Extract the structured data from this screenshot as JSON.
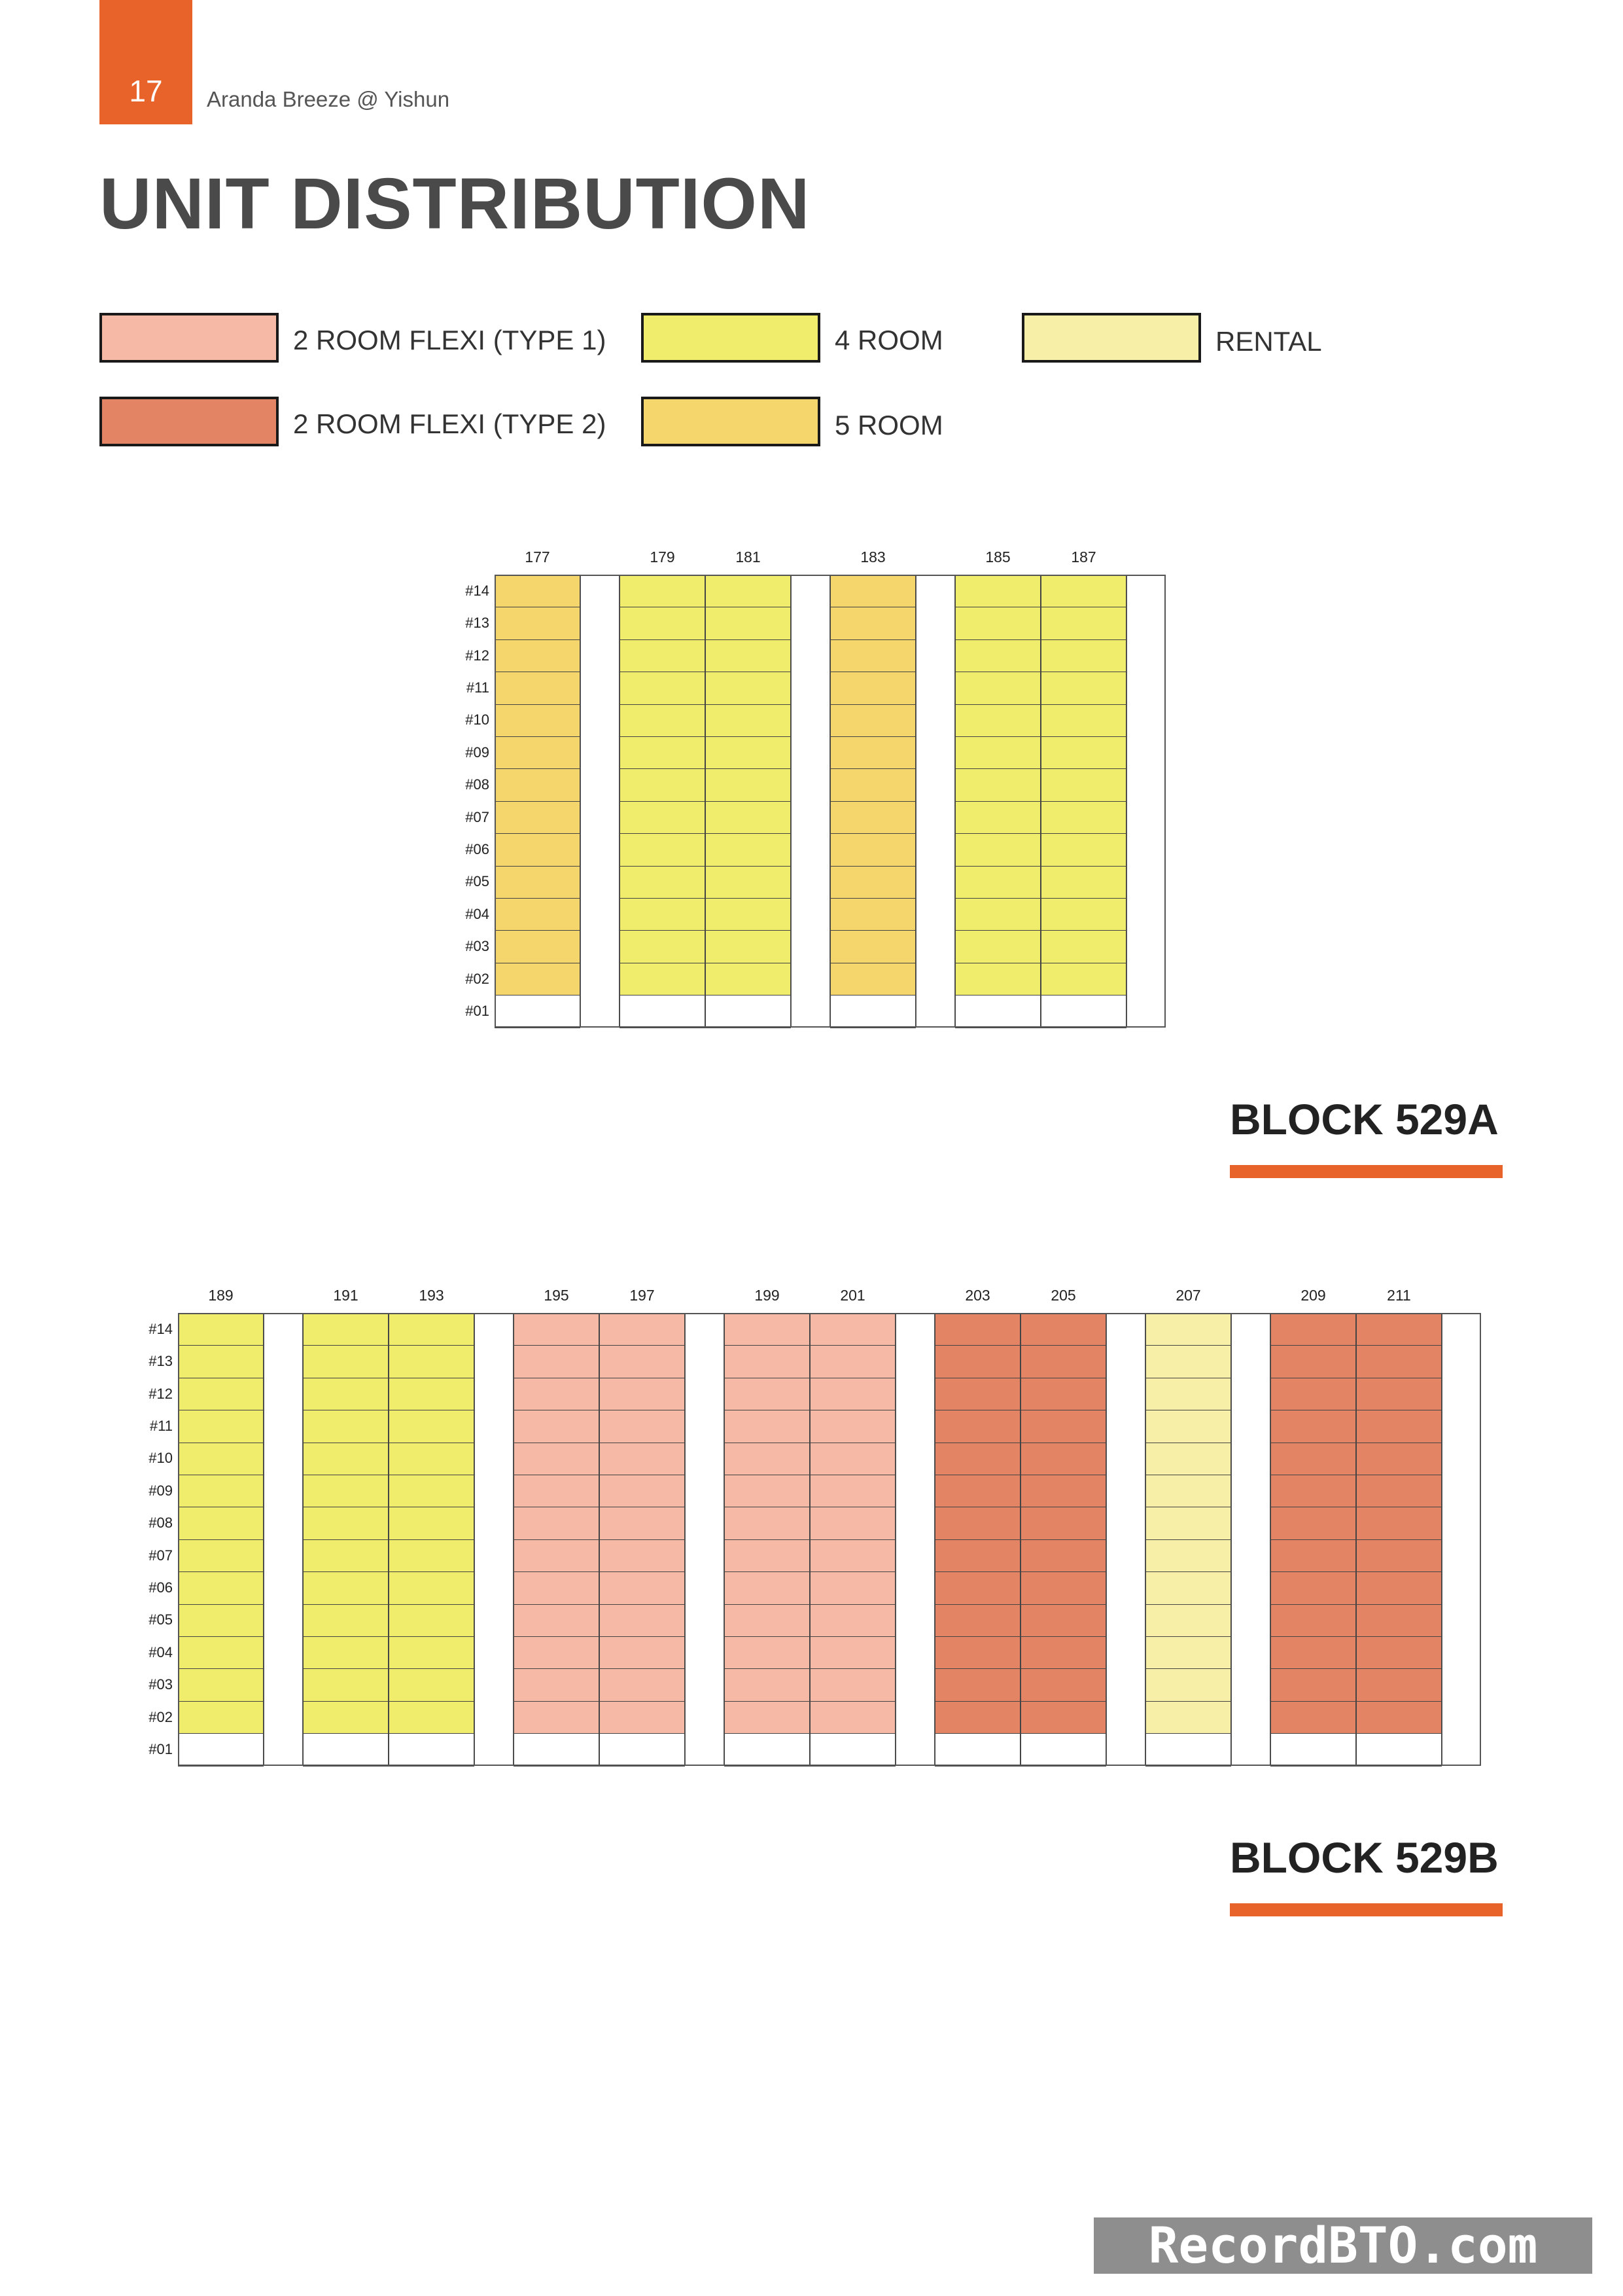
{
  "header": {
    "page_number": "17",
    "project_name": "Aranda Breeze @ Yishun"
  },
  "title": "UNIT DISTRIBUTION",
  "legend": [
    {
      "key": "flexi1",
      "label": "2 ROOM FLEXI (TYPE 1)",
      "color": "#f5b9a6"
    },
    {
      "key": "four",
      "label": "4 ROOM",
      "color": "#f0ec6c"
    },
    {
      "key": "rental",
      "label": "RENTAL",
      "color": "#f7eea8"
    },
    {
      "key": "flexi2",
      "label": "2 ROOM FLEXI (TYPE 2)",
      "color": "#e38565"
    },
    {
      "key": "five",
      "label": "5 ROOM",
      "color": "#f4d66c"
    }
  ],
  "floors": [
    "#14",
    "#13",
    "#12",
    "#11",
    "#10",
    "#09",
    "#08",
    "#07",
    "#06",
    "#05",
    "#04",
    "#03",
    "#02",
    "#01"
  ],
  "blocks": [
    {
      "name": "BLOCK 529A",
      "units": [
        {
          "number": "177",
          "type": "five"
        },
        {
          "gap": true
        },
        {
          "number": "179",
          "type": "four"
        },
        {
          "number": "181",
          "type": "four"
        },
        {
          "gap": true
        },
        {
          "number": "183",
          "type": "five"
        },
        {
          "gap": true
        },
        {
          "number": "185",
          "type": "four"
        },
        {
          "number": "187",
          "type": "four"
        },
        {
          "gap": true
        }
      ]
    },
    {
      "name": "BLOCK 529B",
      "units": [
        {
          "number": "189",
          "type": "four"
        },
        {
          "gap": true
        },
        {
          "number": "191",
          "type": "four"
        },
        {
          "number": "193",
          "type": "four"
        },
        {
          "gap": true
        },
        {
          "number": "195",
          "type": "flexi1"
        },
        {
          "number": "197",
          "type": "flexi1"
        },
        {
          "gap": true
        },
        {
          "number": "199",
          "type": "flexi1"
        },
        {
          "number": "201",
          "type": "flexi1"
        },
        {
          "gap": true
        },
        {
          "number": "203",
          "type": "flexi2"
        },
        {
          "number": "205",
          "type": "flexi2"
        },
        {
          "gap": true
        },
        {
          "number": "207",
          "type": "rental"
        },
        {
          "gap": true
        },
        {
          "number": "209",
          "type": "flexi2"
        },
        {
          "number": "211",
          "type": "flexi2"
        },
        {
          "gap": true
        }
      ]
    }
  ],
  "watermark": "RecordBTO.com"
}
